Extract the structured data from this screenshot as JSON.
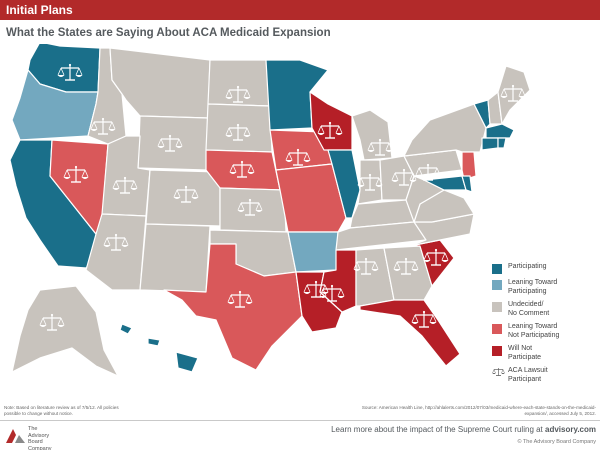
{
  "header": {
    "title": "Initial Plans"
  },
  "subtitle": "What the States are Saying About ACA Medicaid Expansion",
  "colors": {
    "participating": "#1a6f8a",
    "leaning_toward_participating": "#73a8bf",
    "undecided": "#c8c3bd",
    "leaning_toward_not": "#d9585a",
    "will_not": "#b51f27",
    "state_border": "#ffffff",
    "header_bar": "#b22a2a"
  },
  "legend": {
    "items": [
      {
        "label": "Participating",
        "color": "#1a6f8a"
      },
      {
        "label": "Leaning Toward\nParticipating",
        "color": "#73a8bf"
      },
      {
        "label": "Undecided/\nNo Comment",
        "color": "#c8c3bd"
      },
      {
        "label": "Leaning Toward\nNot Participating",
        "color": "#d9585a"
      },
      {
        "label": "Will Not\nParticipate",
        "color": "#b51f27"
      }
    ],
    "lawsuit_label": "ACA Lawsuit\nParticipant",
    "lawsuit_icon": "scales-of-justice-icon"
  },
  "map": {
    "states": [
      {
        "name": "WA",
        "status": "participating",
        "lawsuit": true
      },
      {
        "name": "OR",
        "status": "leaning_toward_participating",
        "lawsuit": false
      },
      {
        "name": "CA",
        "status": "participating",
        "lawsuit": false
      },
      {
        "name": "NV",
        "status": "leaning_toward_not",
        "lawsuit": true
      },
      {
        "name": "ID",
        "status": "undecided",
        "lawsuit": true
      },
      {
        "name": "MT",
        "status": "undecided",
        "lawsuit": false
      },
      {
        "name": "WY",
        "status": "undecided",
        "lawsuit": true
      },
      {
        "name": "UT",
        "status": "undecided",
        "lawsuit": true
      },
      {
        "name": "AZ",
        "status": "undecided",
        "lawsuit": true
      },
      {
        "name": "CO",
        "status": "undecided",
        "lawsuit": true
      },
      {
        "name": "NM",
        "status": "undecided",
        "lawsuit": false
      },
      {
        "name": "ND",
        "status": "undecided",
        "lawsuit": true
      },
      {
        "name": "SD",
        "status": "undecided",
        "lawsuit": true
      },
      {
        "name": "NE",
        "status": "leaning_toward_not",
        "lawsuit": true
      },
      {
        "name": "KS",
        "status": "undecided",
        "lawsuit": true
      },
      {
        "name": "OK",
        "status": "undecided",
        "lawsuit": false
      },
      {
        "name": "TX",
        "status": "leaning_toward_not",
        "lawsuit": true
      },
      {
        "name": "MN",
        "status": "participating",
        "lawsuit": false
      },
      {
        "name": "IA",
        "status": "leaning_toward_not",
        "lawsuit": true
      },
      {
        "name": "MO",
        "status": "leaning_toward_not",
        "lawsuit": false
      },
      {
        "name": "AR",
        "status": "leaning_toward_participating",
        "lawsuit": false
      },
      {
        "name": "LA",
        "status": "will_not",
        "lawsuit": true
      },
      {
        "name": "WI",
        "status": "will_not",
        "lawsuit": true
      },
      {
        "name": "IL",
        "status": "participating",
        "lawsuit": false
      },
      {
        "name": "MS",
        "status": "will_not",
        "lawsuit": true
      },
      {
        "name": "MI",
        "status": "undecided",
        "lawsuit": true
      },
      {
        "name": "IN",
        "status": "undecided",
        "lawsuit": true
      },
      {
        "name": "OH",
        "status": "undecided",
        "lawsuit": true
      },
      {
        "name": "KY",
        "status": "undecided",
        "lawsuit": false
      },
      {
        "name": "TN",
        "status": "undecided",
        "lawsuit": false
      },
      {
        "name": "AL",
        "status": "undecided",
        "lawsuit": true
      },
      {
        "name": "GA",
        "status": "undecided",
        "lawsuit": true
      },
      {
        "name": "FL",
        "status": "will_not",
        "lawsuit": true
      },
      {
        "name": "SC",
        "status": "will_not",
        "lawsuit": true
      },
      {
        "name": "NC",
        "status": "undecided",
        "lawsuit": false
      },
      {
        "name": "VA",
        "status": "undecided",
        "lawsuit": false
      },
      {
        "name": "WV",
        "status": "undecided",
        "lawsuit": false
      },
      {
        "name": "PA",
        "status": "undecided",
        "lawsuit": true
      },
      {
        "name": "NY",
        "status": "undecided",
        "lawsuit": false
      },
      {
        "name": "NJ",
        "status": "leaning_toward_not",
        "lawsuit": false
      },
      {
        "name": "MD",
        "status": "participating",
        "lawsuit": false
      },
      {
        "name": "DE",
        "status": "participating",
        "lawsuit": false
      },
      {
        "name": "VT",
        "status": "participating",
        "lawsuit": false
      },
      {
        "name": "NH",
        "status": "undecided",
        "lawsuit": false
      },
      {
        "name": "ME",
        "status": "undecided",
        "lawsuit": true
      },
      {
        "name": "MA",
        "status": "participating",
        "lawsuit": false
      },
      {
        "name": "CT",
        "status": "participating",
        "lawsuit": false
      },
      {
        "name": "RI",
        "status": "participating",
        "lawsuit": false
      },
      {
        "name": "AK",
        "status": "undecided",
        "lawsuit": true
      },
      {
        "name": "HI",
        "status": "participating",
        "lawsuit": false
      }
    ]
  },
  "note": "Note: Based on literature review as of 7/5/12. All policies possible to change without notice.",
  "source": "Source: American Health Line, http://ahlalerts.com/2012/07/03/medicaid-where-each-state-stands-on-the-medicaid-expansion/, accessed July 5, 2012.",
  "logo": {
    "text": "The\nAdvisory\nBoard\nCompany"
  },
  "cta": {
    "prefix": "Learn more about the impact of the Supreme Court ruling at ",
    "link": "advisory.com"
  },
  "copyright": "© The Advisory Board Company"
}
